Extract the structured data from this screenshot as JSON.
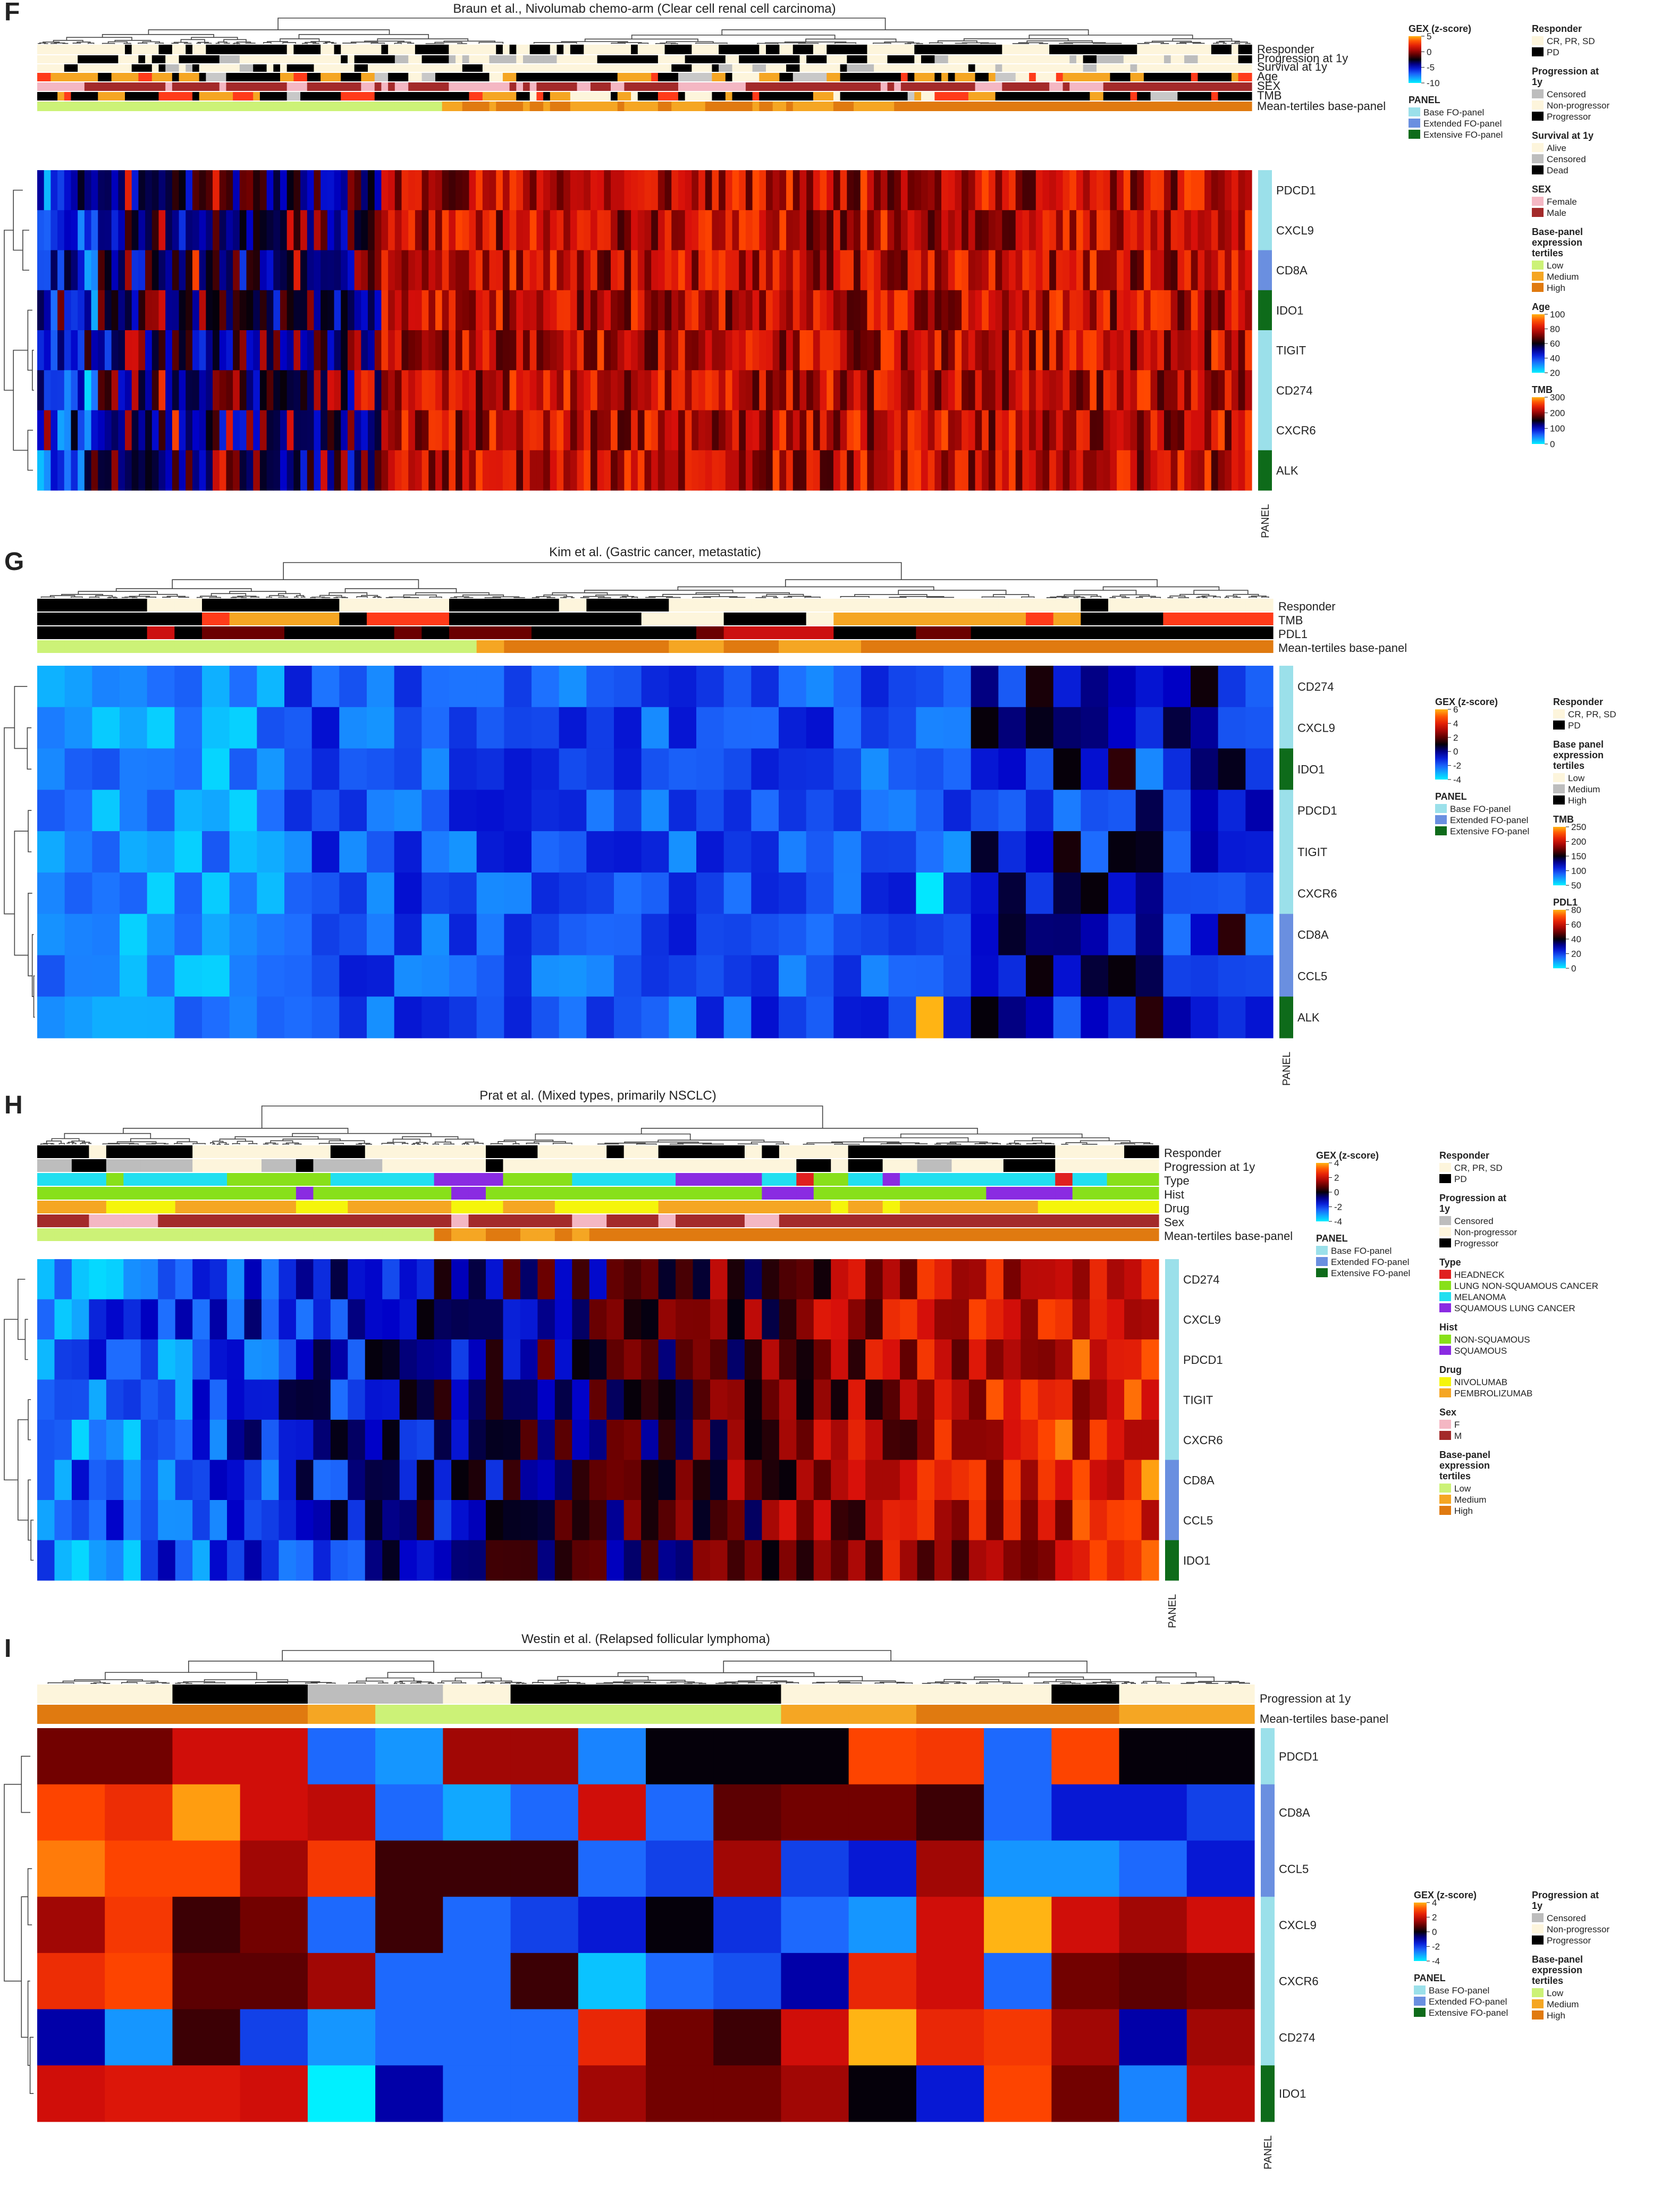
{
  "colors": {
    "cream": "#fdf5dc",
    "black": "#000000",
    "grey": "#bdbdbd",
    "panel_base": "#9be0ea",
    "panel_extended": "#6a8fe0",
    "panel_extensive": "#0e6b1a",
    "tertile_low": "#ccf277",
    "tertile_medium": "#f5a623",
    "tertile_high": "#e07a10",
    "female": "#f4b7c3",
    "male": "#a32a2a",
    "type_headneck": "#e02020",
    "type_lung_nonsq": "#88e01a",
    "type_melanoma": "#21dff0",
    "type_squamous_lung": "#8a2be2",
    "hist_nonsq": "#88e01a",
    "hist_sq": "#8a2be2",
    "drug_nivo": "#f5f50a",
    "drug_pembro": "#f5a623"
  },
  "chart_data": [
    {
      "type": "heatmap",
      "panel_letter": "F",
      "title": "Braun et al., Nivolumab chemo-arm (Clear cell renal cell carcinoma)",
      "rows": [
        "PDCD1",
        "CXCL9",
        "CD8A",
        "IDO1",
        "TIGIT",
        "CD274",
        "CXCR6",
        "ALK"
      ],
      "row_panel": [
        "base",
        "base",
        "extended",
        "extensive",
        "base",
        "base",
        "base",
        "extensive"
      ],
      "n_columns": 180,
      "color_scale": {
        "min": -10,
        "max": 5,
        "scheme": "blue-black-red-orange"
      },
      "annotation_tracks": [
        "Responder",
        "Progression at 1y",
        "Survival at 1y",
        "Age",
        "SEX",
        "TMB",
        "Mean-tertiles base-panel"
      ],
      "panel_axis_label": "PANEL",
      "legends": [
        {
          "title": "GEX (z-score)",
          "kind": "gradient",
          "ticks": [
            "5",
            "0",
            "-5",
            "-10"
          ]
        },
        {
          "title": "PANEL",
          "kind": "items",
          "items": [
            [
              "Base FO-panel",
              "panel_base"
            ],
            [
              "Extended FO-panel",
              "panel_extended"
            ],
            [
              "Extensive FO-panel",
              "panel_extensive"
            ]
          ]
        },
        {
          "title": "Responder",
          "kind": "items",
          "items": [
            [
              "CR, PR, SD",
              "cream"
            ],
            [
              "PD",
              "black"
            ]
          ]
        },
        {
          "title": "Progression at 1y",
          "kind": "items",
          "items": [
            [
              "Censored",
              "grey"
            ],
            [
              "Non-progressor",
              "cream"
            ],
            [
              "Progressor",
              "black"
            ]
          ]
        },
        {
          "title": "Survival at 1y",
          "kind": "items",
          "items": [
            [
              "Alive",
              "cream"
            ],
            [
              "Censored",
              "grey"
            ],
            [
              "Dead",
              "black"
            ]
          ]
        },
        {
          "title": "SEX",
          "kind": "items",
          "items": [
            [
              "Female",
              "female"
            ],
            [
              "Male",
              "male"
            ]
          ]
        },
        {
          "title": "Base-panel expression tertiles",
          "kind": "items",
          "items": [
            [
              "Low",
              "tertile_low"
            ],
            [
              "Medium",
              "tertile_medium"
            ],
            [
              "High",
              "tertile_high"
            ]
          ]
        },
        {
          "title": "Age",
          "kind": "gradient",
          "ticks": [
            "100",
            "80",
            "60",
            "40",
            "20"
          ]
        },
        {
          "title": "TMB",
          "kind": "gradient",
          "ticks": [
            "300",
            "200",
            "100",
            "0"
          ]
        }
      ]
    },
    {
      "type": "heatmap",
      "panel_letter": "G",
      "title": "Kim et al. (Gastric cancer, metastatic)",
      "rows": [
        "CD274",
        "CXCL9",
        "IDO1",
        "PDCD1",
        "TIGIT",
        "CXCR6",
        "CD8A",
        "CCL5",
        "ALK"
      ],
      "row_panel": [
        "base",
        "base",
        "extensive",
        "base",
        "base",
        "base",
        "extended",
        "extended",
        "extensive"
      ],
      "n_columns": 45,
      "color_scale": {
        "min": -4,
        "max": 6,
        "scheme": "blue-black-red-orange"
      },
      "annotation_tracks": [
        "Responder",
        "TMB",
        "PDL1",
        "Mean-tertiles base-panel"
      ],
      "panel_axis_label": "PANEL",
      "legends": [
        {
          "title": "GEX (z-score)",
          "kind": "gradient",
          "ticks": [
            "6",
            "4",
            "2",
            "0",
            "-2",
            "-4"
          ]
        },
        {
          "title": "PANEL",
          "kind": "items",
          "items": [
            [
              "Base FO-panel",
              "panel_base"
            ],
            [
              "Extended FO-panel",
              "panel_extended"
            ],
            [
              "Extensive FO-panel",
              "panel_extensive"
            ]
          ]
        },
        {
          "title": "Responder",
          "kind": "items",
          "items": [
            [
              "CR, PR, SD",
              "cream"
            ],
            [
              "PD",
              "black"
            ]
          ]
        },
        {
          "title": "Base panel expression tertiles",
          "kind": "items",
          "items": [
            [
              "Low",
              "cream"
            ],
            [
              "Medium",
              "grey"
            ],
            [
              "High",
              "black"
            ]
          ]
        },
        {
          "title": "TMB",
          "kind": "gradient",
          "ticks": [
            "250",
            "200",
            "150",
            "100",
            "50"
          ]
        },
        {
          "title": "PDL1",
          "kind": "gradient",
          "ticks": [
            "80",
            "60",
            "40",
            "20",
            "0"
          ]
        }
      ]
    },
    {
      "type": "heatmap",
      "panel_letter": "H",
      "title": "Prat et al. (Mixed types, primarily NSCLC)",
      "rows": [
        "CD274",
        "CXCL9",
        "PDCD1",
        "TIGIT",
        "CXCR6",
        "CD8A",
        "CCL5",
        "IDO1"
      ],
      "row_panel": [
        "base",
        "base",
        "base",
        "base",
        "base",
        "extended",
        "extended",
        "extensive"
      ],
      "n_columns": 65,
      "color_scale": {
        "min": -4,
        "max": 4,
        "scheme": "blue-black-red-orange"
      },
      "annotation_tracks": [
        "Responder",
        "Progression at 1y",
        "Type",
        "Hist",
        "Drug",
        "Sex",
        "Mean-tertiles base-panel"
      ],
      "panel_axis_label": "PANEL",
      "legends": [
        {
          "title": "GEX (z-score)",
          "kind": "gradient",
          "ticks": [
            "4",
            "2",
            "0",
            "-2",
            "-4"
          ]
        },
        {
          "title": "PANEL",
          "kind": "items",
          "items": [
            [
              "Base FO-panel",
              "panel_base"
            ],
            [
              "Extended FO-panel",
              "panel_extended"
            ],
            [
              "Extensive FO-panel",
              "panel_extensive"
            ]
          ]
        },
        {
          "title": "Responder",
          "kind": "items",
          "items": [
            [
              "CR, PR, SD",
              "cream"
            ],
            [
              "PD",
              "black"
            ]
          ]
        },
        {
          "title": "Progression at 1y",
          "kind": "items",
          "items": [
            [
              "Censored",
              "grey"
            ],
            [
              "Non-progressor",
              "cream"
            ],
            [
              "Progressor",
              "black"
            ]
          ]
        },
        {
          "title": "Type",
          "kind": "items",
          "items": [
            [
              "HEADNECK",
              "type_headneck"
            ],
            [
              "LUNG NON-SQUAMOUS CANCER",
              "type_lung_nonsq"
            ],
            [
              "MELANOMA",
              "type_melanoma"
            ],
            [
              "SQUAMOUS LUNG CANCER",
              "type_squamous_lung"
            ]
          ]
        },
        {
          "title": "Hist",
          "kind": "items",
          "items": [
            [
              "NON-SQUAMOUS",
              "hist_nonsq"
            ],
            [
              "SQUAMOUS",
              "hist_sq"
            ]
          ]
        },
        {
          "title": "Drug",
          "kind": "items",
          "items": [
            [
              "NIVOLUMAB",
              "drug_nivo"
            ],
            [
              "PEMBROLIZUMAB",
              "drug_pembro"
            ]
          ]
        },
        {
          "title": "Sex",
          "kind": "items",
          "items": [
            [
              "F",
              "female"
            ],
            [
              "M",
              "male"
            ]
          ]
        },
        {
          "title": "Base-panel expression tertiles",
          "kind": "items",
          "items": [
            [
              "Low",
              "tertile_low"
            ],
            [
              "Medium",
              "tertile_medium"
            ],
            [
              "High",
              "tertile_high"
            ]
          ]
        }
      ]
    },
    {
      "type": "heatmap",
      "panel_letter": "I",
      "title": "Westin et al. (Relapsed follicular lymphoma)",
      "rows": [
        "PDCD1",
        "CD8A",
        "CCL5",
        "CXCL9",
        "CXCR6",
        "CD274",
        "IDO1"
      ],
      "row_panel": [
        "base",
        "extended",
        "extended",
        "base",
        "base",
        "base",
        "extensive"
      ],
      "n_columns": 18,
      "color_scale": {
        "min": -4,
        "max": 4,
        "scheme": "blue-black-red-orange"
      },
      "annotation_tracks": [
        "Progression at 1y",
        "Mean-tertiles base-panel"
      ],
      "panel_axis_label": "PANEL",
      "values": [
        [
          1.0,
          1.0,
          2.0,
          2.0,
          -2.5,
          -3.0,
          1.5,
          1.5,
          -2.8,
          0.0,
          0.0,
          0.0,
          3.0,
          2.8,
          -2.5,
          3.0,
          0.0,
          0.0
        ],
        [
          3.0,
          2.6,
          3.8,
          2.0,
          1.8,
          -2.5,
          -3.2,
          -2.5,
          2.0,
          -2.5,
          0.8,
          1.0,
          1.0,
          0.5,
          -2.5,
          -1.5,
          -1.5,
          -2.0
        ],
        [
          3.5,
          3.0,
          3.0,
          1.5,
          2.8,
          0.5,
          0.5,
          0.5,
          -2.5,
          -2.0,
          1.5,
          -2.0,
          -1.5,
          1.5,
          -3.0,
          -3.0,
          -2.5,
          -1.5
        ],
        [
          1.5,
          2.8,
          0.5,
          1.0,
          -2.5,
          0.5,
          -2.5,
          -2.0,
          -1.5,
          0.0,
          -1.8,
          -2.5,
          -3.0,
          2.0,
          4.0,
          2.0,
          1.5,
          2.0
        ],
        [
          2.6,
          3.0,
          0.8,
          0.8,
          1.5,
          -2.5,
          -2.5,
          0.5,
          -3.5,
          -2.5,
          -2.2,
          -1.0,
          2.5,
          2.0,
          -2.5,
          1.0,
          0.8,
          1.0
        ],
        [
          -1.0,
          -3.0,
          0.5,
          -2.0,
          -3.0,
          -2.5,
          -2.5,
          -2.5,
          2.5,
          1.0,
          0.5,
          2.0,
          4.0,
          2.5,
          2.8,
          1.5,
          -1.0,
          1.5
        ],
        [
          2.0,
          2.2,
          2.2,
          2.0,
          -4.0,
          -1.0,
          -2.5,
          -2.5,
          1.5,
          1.0,
          1.0,
          1.5,
          0.0,
          -1.5,
          3.0,
          1.0,
          -2.8,
          1.8
        ]
      ],
      "legends": [
        {
          "title": "GEX (z-score)",
          "kind": "gradient",
          "ticks": [
            "4",
            "2",
            "0",
            "-2",
            "-4"
          ]
        },
        {
          "title": "PANEL",
          "kind": "items",
          "items": [
            [
              "Base FO-panel",
              "panel_base"
            ],
            [
              "Extended FO-panel",
              "panel_extended"
            ],
            [
              "Extensive FO-panel",
              "panel_extensive"
            ]
          ]
        },
        {
          "title": "Progression at 1y",
          "kind": "items",
          "items": [
            [
              "Censored",
              "grey"
            ],
            [
              "Non-progressor",
              "cream"
            ],
            [
              "Progressor",
              "black"
            ]
          ]
        },
        {
          "title": "Base-panel expression tertiles",
          "kind": "items",
          "items": [
            [
              "Low",
              "tertile_low"
            ],
            [
              "Medium",
              "tertile_medium"
            ],
            [
              "High",
              "tertile_high"
            ]
          ]
        }
      ]
    }
  ]
}
